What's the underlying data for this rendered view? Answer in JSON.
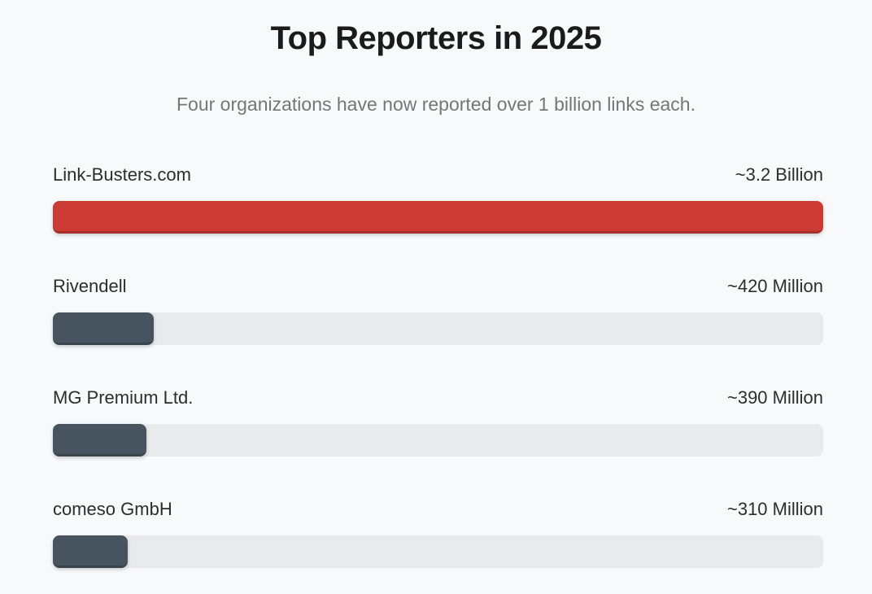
{
  "page": {
    "title": "Top Reporters in 2025",
    "subtitle": "Four organizations have now reported over 1 billion links each."
  },
  "chart_data": {
    "type": "bar",
    "orientation": "horizontal",
    "title": "Top Reporters in 2025",
    "subtitle": "Four organizations have now reported over 1 billion links each.",
    "value_unit": "reported links",
    "axis_max_millions": 3200,
    "legend": "none",
    "grid": false,
    "colors": {
      "highlight_bar": "#cb3a33",
      "default_bar": "#47545f",
      "track": "#e9eaeb",
      "background": "#f8f9fa",
      "title_text": "#1b1b1b",
      "subtitle_text": "#767676",
      "label_text": "#2d2d2d"
    },
    "bars": [
      {
        "label": "Link-Busters.com",
        "value_label": "~3.2 Billion",
        "value_millions": 3200,
        "color": "#cb3a33"
      },
      {
        "label": "Rivendell",
        "value_label": "~420 Million",
        "value_millions": 420,
        "color": "#47545f"
      },
      {
        "label": "MG Premium Ltd.",
        "value_label": "~390 Million",
        "value_millions": 390,
        "color": "#47545f"
      },
      {
        "label": "comeso GmbH",
        "value_label": "~310 Million",
        "value_millions": 310,
        "color": "#47545f"
      }
    ]
  }
}
